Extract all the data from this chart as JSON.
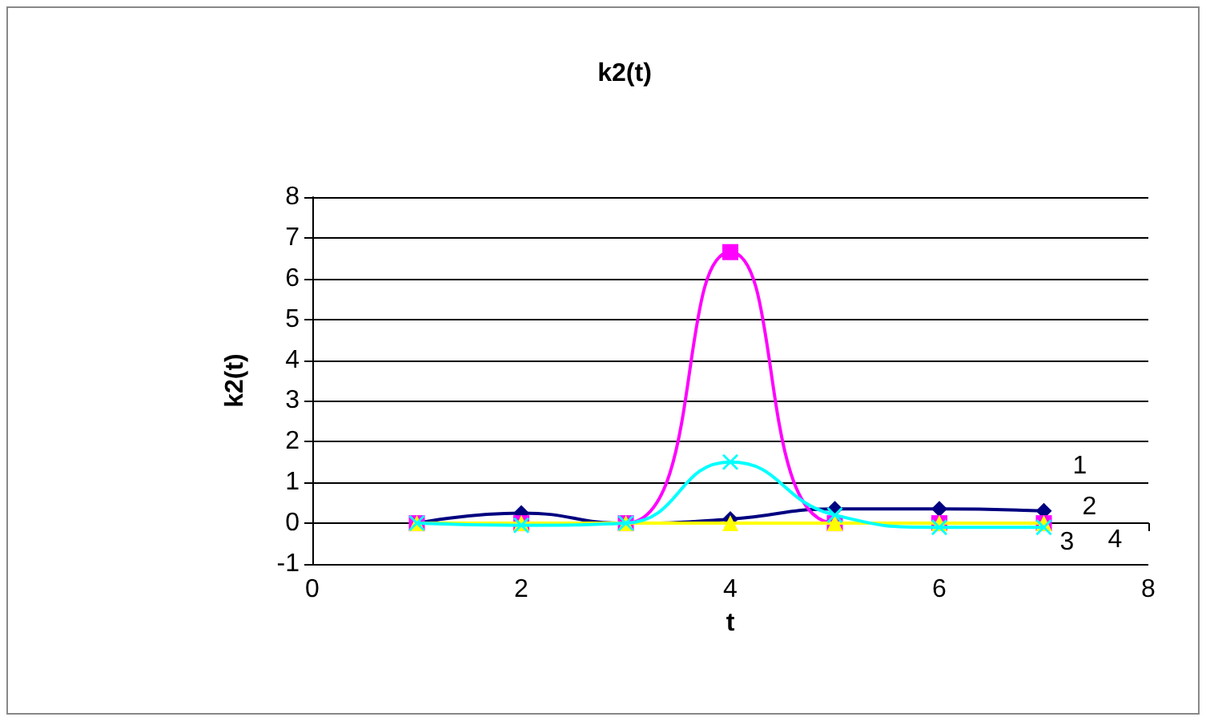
{
  "chart_data": {
    "type": "line",
    "title": "k2(t)",
    "xlabel": "t",
    "ylabel": "k2(t)",
    "xlim": [
      0,
      8
    ],
    "xticks": [
      0,
      2,
      4,
      6,
      8
    ],
    "ylim": [
      -1,
      8
    ],
    "yticks": [
      -1,
      0,
      1,
      2,
      3,
      4,
      5,
      6,
      7,
      8
    ],
    "grid": "y",
    "legend": false,
    "x": [
      1,
      2,
      3,
      4,
      5,
      6,
      7
    ],
    "series": [
      {
        "name": "1",
        "color": "#000080",
        "marker": "diamond",
        "values": [
          0,
          0.25,
          0,
          0.1,
          0.35,
          0.35,
          0.3
        ]
      },
      {
        "name": "2",
        "color": "#ff00ff",
        "marker": "square",
        "values": [
          0,
          0,
          0,
          6.65,
          0,
          0,
          0
        ]
      },
      {
        "name": "3",
        "color": "#ffff00",
        "marker": "triangle",
        "values": [
          0,
          0,
          0,
          0,
          0,
          0,
          0
        ]
      },
      {
        "name": "4",
        "color": "#00ffff",
        "marker": "cross",
        "values": [
          0,
          -0.05,
          0,
          1.5,
          0.2,
          -0.1,
          -0.1
        ]
      }
    ]
  }
}
